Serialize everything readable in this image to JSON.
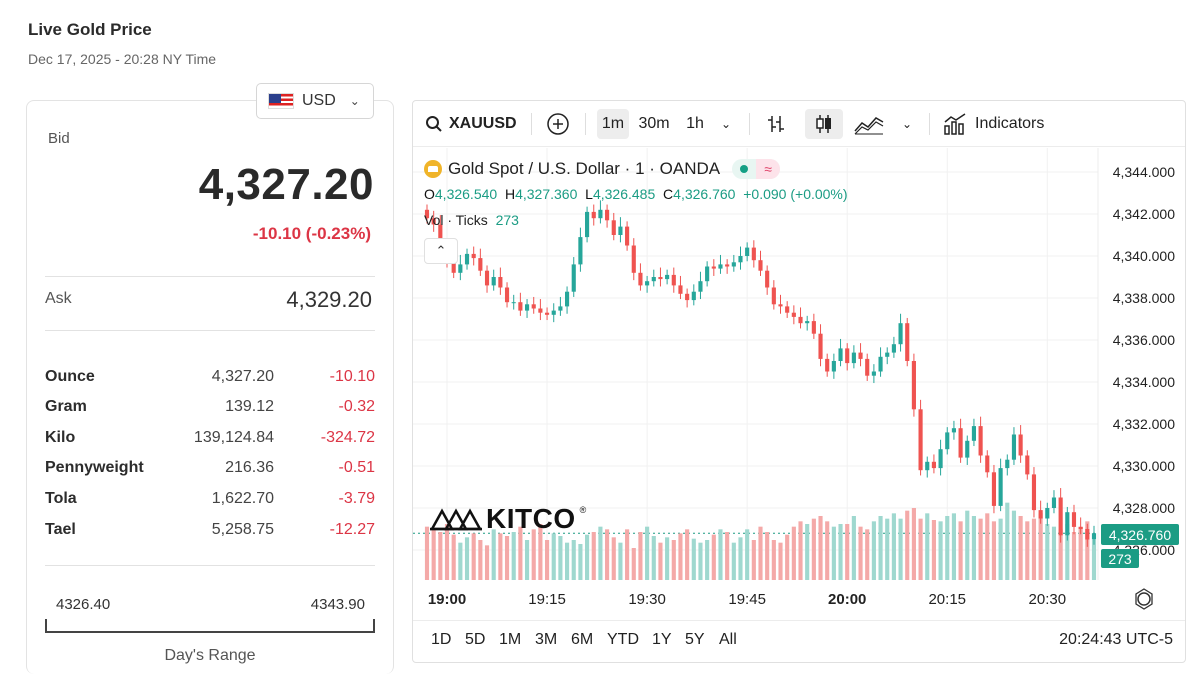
{
  "page": {
    "title": "Live Gold Price",
    "subtitle": "Dec 17, 2025 - 20:28 NY Time",
    "currency": "USD"
  },
  "quote": {
    "bid_label": "Bid",
    "bid": "4,327.20",
    "change": "-10.10 (-0.23%)",
    "ask_label": "Ask",
    "ask": "4,329.20"
  },
  "units": [
    {
      "unit": "Ounce",
      "price": "4,327.20",
      "change": "-10.10"
    },
    {
      "unit": "Gram",
      "price": "139.12",
      "change": "-0.32"
    },
    {
      "unit": "Kilo",
      "price": "139,124.84",
      "change": "-324.72"
    },
    {
      "unit": "Pennyweight",
      "price": "216.36",
      "change": "-0.51"
    },
    {
      "unit": "Tola",
      "price": "1,622.70",
      "change": "-3.79"
    },
    {
      "unit": "Tael",
      "price": "5,258.75",
      "change": "-12.27"
    }
  ],
  "day_range": {
    "low": "4326.40",
    "high": "4343.90",
    "label": "Day's Range"
  },
  "toolbar": {
    "symbol": "XAUUSD",
    "intervals": [
      "1m",
      "30m",
      "1h"
    ],
    "active_interval": "1m",
    "indicators_label": "Indicators",
    "icons": [
      "search-icon",
      "add-symbol-icon",
      "chevron-down-icon",
      "bar-type-icon",
      "candles-icon",
      "area-icon",
      "chevron-down-icon",
      "indicators-icon"
    ]
  },
  "chart_header": {
    "title": "Gold Spot / U.S. Dollar · 1 · OANDA",
    "status_wave": "≈",
    "o_label": "O",
    "o": "4,326.540",
    "h_label": "H",
    "h": "4,327.360",
    "l_label": "L",
    "l": "4,326.485",
    "c_label": "C",
    "c": "4,326.760",
    "change": "+0.090 (+0.00%)",
    "volume_label": "Vol · Ticks",
    "volume": "273",
    "watermark": "KITCO",
    "current_price_tag": "4,326.760",
    "current_volume_tag": "273"
  },
  "chart_data": {
    "type": "candlestick",
    "y_ticks": [
      "4,344.000",
      "4,342.000",
      "4,340.000",
      "4,338.000",
      "4,336.000",
      "4,334.000",
      "4,332.000",
      "4,330.000",
      "4,328.000",
      "4,326.000"
    ],
    "y_range": [
      4326,
      4344
    ],
    "x_ticks": [
      "19:00",
      "19:15",
      "19:30",
      "19:45",
      "20:00",
      "20:15",
      "20:30"
    ],
    "closes": [
      4341.8,
      4341.5,
      4340.4,
      4339.8,
      4339.2,
      4339.6,
      4340.1,
      4339.9,
      4339.3,
      4338.6,
      4339.0,
      4338.5,
      4337.8,
      4337.8,
      4337.4,
      4337.7,
      4337.5,
      4337.3,
      4337.2,
      4337.4,
      4337.6,
      4338.3,
      4339.6,
      4340.9,
      4342.1,
      4341.8,
      4342.2,
      4341.7,
      4341.0,
      4341.4,
      4340.5,
      4339.2,
      4338.6,
      4338.8,
      4339.0,
      4338.9,
      4339.1,
      4338.6,
      4338.2,
      4337.9,
      4338.3,
      4338.8,
      4339.5,
      4339.4,
      4339.6,
      4339.5,
      4339.7,
      4340.0,
      4340.4,
      4339.8,
      4339.3,
      4338.5,
      4337.7,
      4337.6,
      4337.3,
      4337.1,
      4336.8,
      4336.9,
      4336.3,
      4335.1,
      4334.5,
      4335.0,
      4335.6,
      4334.9,
      4335.4,
      4335.1,
      4334.3,
      4334.5,
      4335.2,
      4335.4,
      4335.8,
      4336.8,
      4335.0,
      4332.7,
      4329.8,
      4330.2,
      4329.9,
      4330.8,
      4331.6,
      4331.8,
      4330.4,
      4331.2,
      4331.9,
      4330.5,
      4329.7,
      4328.1,
      4329.9,
      4330.3,
      4331.5,
      4330.5,
      4329.6,
      4327.9,
      4327.5,
      4328.0,
      4328.5,
      4326.7,
      4327.8,
      4327.1,
      4327.0,
      4326.5,
      4326.8
    ],
    "volumes": [
      40,
      38,
      36,
      42,
      34,
      28,
      32,
      35,
      30,
      26,
      38,
      35,
      33,
      36,
      40,
      30,
      38,
      42,
      30,
      35,
      33,
      28,
      30,
      27,
      34,
      36,
      40,
      38,
      32,
      28,
      38,
      24,
      36,
      40,
      33,
      28,
      32,
      30,
      35,
      38,
      31,
      28,
      30,
      34,
      38,
      36,
      28,
      32,
      38,
      30,
      40,
      36,
      30,
      28,
      34,
      40,
      44,
      42,
      46,
      48,
      44,
      40,
      42,
      42,
      48,
      40,
      38,
      44,
      48,
      46,
      50,
      46,
      52,
      54,
      46,
      50,
      45,
      44,
      48,
      50,
      44,
      52,
      48,
      46,
      50,
      44,
      46,
      58,
      52,
      48,
      44,
      46,
      50,
      42,
      40,
      38,
      42,
      36,
      40,
      44,
      30
    ]
  }
}
